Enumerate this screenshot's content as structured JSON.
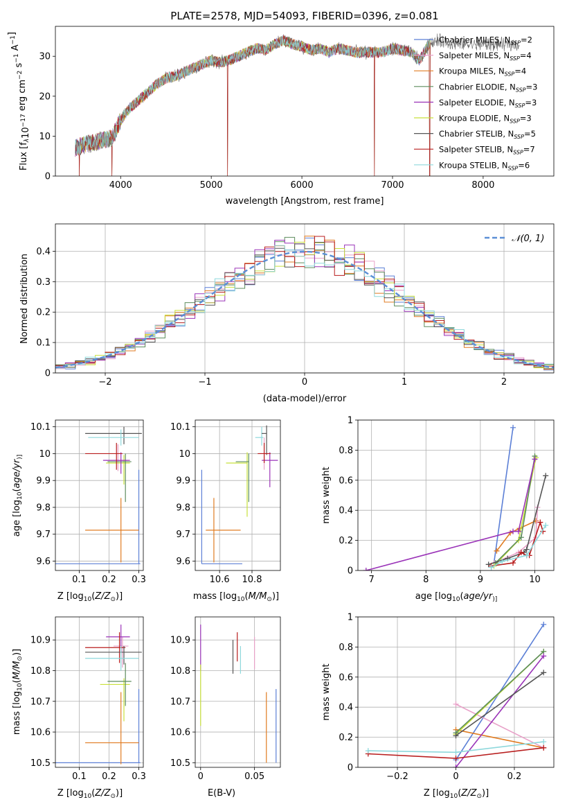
{
  "chart_data": [
    {
      "id": "spectrum",
      "type": "line",
      "title": "PLATE=2578, MJD=54093, FIBERID=0396, z=0.081",
      "xlabel": "wavelength [Angstrom, rest frame]",
      "ylabel_parts": [
        "Flux [f",
        "λ",
        "10",
        "−17",
        " erg cm",
        "−2",
        " s",
        "−1",
        " A",
        "−1",
        "]"
      ],
      "xlim": [
        3280,
        8780
      ],
      "ylim": [
        0,
        37.5
      ],
      "xticks": [
        4000,
        5000,
        6000,
        7000,
        8000
      ],
      "yticks": [
        0,
        10,
        20,
        30
      ],
      "grid": false,
      "legend_position": "top-right",
      "series": [
        {
          "name": "Chabrier MILES",
          "nssp": "2",
          "color": "#5b7fd6"
        },
        {
          "name": "Salpeter MILES",
          "nssp": "4",
          "color": "#e8a0c8"
        },
        {
          "name": "Kroupa MILES",
          "nssp": "4",
          "color": "#e07b20"
        },
        {
          "name": "Chabrier ELODIE",
          "nssp": "3",
          "color": "#5c8c5c"
        },
        {
          "name": "Salpeter ELODIE",
          "nssp": "3",
          "color": "#9a33b8"
        },
        {
          "name": "Kroupa ELODIE",
          "nssp": "3",
          "color": "#c8e03a"
        },
        {
          "name": "Chabrier STELIB",
          "nssp": "5",
          "color": "#555555"
        },
        {
          "name": "Salpeter STELIB",
          "nssp": "7",
          "color": "#b81d1d"
        },
        {
          "name": "Kroupa STELIB",
          "nssp": "6",
          "color": "#8ed8dc"
        }
      ],
      "continuum": {
        "x": [
          3500,
          3600,
          3700,
          3800,
          3900,
          4000,
          4100,
          4200,
          4300,
          4400,
          4500,
          4600,
          4700,
          4800,
          4900,
          5000,
          5100,
          5200,
          5300,
          5400,
          5500,
          5600,
          5700,
          5800,
          5900,
          6000,
          6100,
          6200,
          6300,
          6400,
          6500,
          6600,
          6700,
          6800,
          6900,
          7000,
          7100,
          7200,
          7300,
          7400,
          7500,
          7600,
          7700,
          7800,
          7900,
          8000,
          8100,
          8200,
          8300,
          8400
        ],
        "y": [
          7,
          8,
          8.5,
          9,
          9.5,
          14,
          17,
          19,
          21,
          23,
          24.5,
          25,
          26,
          27,
          28,
          29,
          28.5,
          29,
          30,
          31,
          32,
          31.5,
          33,
          34,
          33,
          32.5,
          31.5,
          32,
          31,
          32,
          31.5,
          31,
          31,
          31,
          31,
          32,
          31.5,
          31,
          29,
          33,
          34,
          33.5,
          33,
          33,
          33,
          33,
          33,
          33,
          33,
          33
        ]
      },
      "dropouts_x": [
        3545,
        3905,
        5180,
        6800,
        7410
      ]
    },
    {
      "id": "residuals",
      "type": "histogram",
      "xlabel": "(data-model)/error",
      "ylabel": "Normed distribution",
      "xlim": [
        -2.5,
        2.5
      ],
      "ylim": [
        0,
        0.49
      ],
      "xticks": [
        -2,
        -1,
        0,
        1,
        2
      ],
      "yticks": [
        0.0,
        0.1,
        0.2,
        0.3,
        0.4
      ],
      "grid": true,
      "legend_position": "top-right",
      "legend": "𝒩(0, 1)",
      "reference_curve": {
        "type": "normal",
        "mean": 0,
        "sd": 1,
        "color": "#5b8fd6"
      },
      "bin_width": 0.1
    },
    {
      "id": "age-vs-Z",
      "type": "scatter",
      "xlabel_parts": [
        "Z [log",
        "10",
        "(",
        "Z/Z",
        "⊙",
        ")]"
      ],
      "ylabel_parts": [
        "age  [log",
        "10",
        "(",
        "age/yr",
        ")]"
      ],
      "xlim": [
        0.02,
        0.315
      ],
      "ylim": [
        9.565,
        10.125
      ],
      "xticks": [
        0.1,
        0.2,
        0.3
      ],
      "yticks": [
        9.6,
        9.7,
        9.8,
        9.9,
        10.0,
        10.1
      ],
      "grid": true,
      "points": [
        {
          "x": 0.3,
          "y": 9.59,
          "xerr": [
            0.28,
            0.005
          ],
          "yerr": [
            0.0,
            0.35
          ],
          "color": "#5b7fd6"
        },
        {
          "x": 0.24,
          "y": 9.715,
          "xerr": [
            0.12,
            0.06
          ],
          "yerr": [
            0.12,
            0.12
          ],
          "color": "#e07b20"
        },
        {
          "x": 0.23,
          "y": 9.975,
          "xerr": [
            0.04,
            0.03
          ],
          "yerr": [
            0.04,
            0.06
          ],
          "color": "#e8a0c8"
        },
        {
          "x": 0.25,
          "y": 9.965,
          "xerr": [
            0.06,
            0.02
          ],
          "yerr": [
            0.08,
            0.03
          ],
          "color": "#c8e03a"
        },
        {
          "x": 0.255,
          "y": 9.97,
          "xerr": [
            0.06,
            0.02
          ],
          "yerr": [
            0.15,
            0.03
          ],
          "color": "#5c8c5c"
        },
        {
          "x": 0.24,
          "y": 9.975,
          "xerr": [
            0.06,
            0.03
          ],
          "yerr": [
            0.05,
            0.03
          ],
          "color": "#9a33b8"
        },
        {
          "x": 0.225,
          "y": 10.0,
          "xerr": [
            0.105,
            0.02
          ],
          "yerr": [
            0.06,
            0.04
          ],
          "color": "#b81d1d"
        },
        {
          "x": 0.25,
          "y": 10.075,
          "xerr": [
            0.13,
            0.06
          ],
          "yerr": [
            0.04,
            0.025
          ],
          "color": "#555555"
        },
        {
          "x": 0.24,
          "y": 10.06,
          "xerr": [
            0.11,
            0.06
          ],
          "yerr": [
            0.03,
            0.03
          ],
          "color": "#8ed8dc"
        }
      ]
    },
    {
      "id": "age-vs-mass",
      "type": "scatter",
      "xlabel_parts": [
        "mass [log",
        "10",
        "(",
        "M/M",
        "⊙",
        ")]"
      ],
      "ylabel": "",
      "xlim": [
        10.45,
        10.975
      ],
      "ylim": [
        9.565,
        10.125
      ],
      "xticks": [
        10.6,
        10.8
      ],
      "yticks": [
        9.6,
        9.7,
        9.8,
        9.9,
        10.0,
        10.1
      ],
      "grid": true,
      "points": [
        {
          "x": 10.49,
          "y": 9.59,
          "xerr": [
            0.0,
            0.25
          ],
          "yerr": [
            0.0,
            0.35
          ],
          "color": "#5b7fd6"
        },
        {
          "x": 10.565,
          "y": 9.715,
          "xerr": [
            0.05,
            0.165
          ],
          "yerr": [
            0.12,
            0.12
          ],
          "color": "#e07b20"
        },
        {
          "x": 10.77,
          "y": 9.965,
          "xerr": [
            0.13,
            0.0
          ],
          "yerr": [
            0.2,
            0.04
          ],
          "color": "#c8e03a"
        },
        {
          "x": 10.78,
          "y": 9.97,
          "xerr": [
            0.08,
            0.0
          ],
          "yerr": [
            0.15,
            0.03
          ],
          "color": "#5c8c5c"
        },
        {
          "x": 10.86,
          "y": 10.06,
          "xerr": [
            0.04,
            0.01
          ],
          "yerr": [
            0.03,
            0.04
          ],
          "color": "#8ed8dc"
        },
        {
          "x": 10.875,
          "y": 10.0,
          "xerr": [
            0.03,
            0.03
          ],
          "yerr": [
            0.06,
            0.06
          ],
          "color": "#e8a0c8"
        },
        {
          "x": 10.89,
          "y": 10.075,
          "xerr": [
            0.03,
            0.0
          ],
          "yerr": [
            0.08,
            0.03
          ],
          "color": "#555555"
        },
        {
          "x": 10.91,
          "y": 9.975,
          "xerr": [
            0.05,
            0.05
          ],
          "yerr": [
            0.1,
            0.03
          ],
          "color": "#9a33b8"
        },
        {
          "x": 10.875,
          "y": 10.0,
          "xerr": [
            0.04,
            0.04
          ],
          "yerr": [
            0.035,
            0.04
          ],
          "color": "#b81d1d"
        }
      ]
    },
    {
      "id": "weight-vs-age",
      "type": "line",
      "xlabel_parts": [
        "age  [log",
        "10",
        "(",
        "age/yr",
        ")]"
      ],
      "ylabel": "mass weight",
      "xlim": [
        6.75,
        10.35
      ],
      "ylim": [
        0,
        1.0
      ],
      "xticks": [
        7,
        8,
        9,
        10
      ],
      "yticks": [
        0.0,
        0.2,
        0.4,
        0.6,
        0.8,
        1.0
      ],
      "grid": true,
      "series": [
        {
          "color": "#5b7fd6",
          "x": [
            9.25,
            9.6
          ],
          "y": [
            0.05,
            0.95
          ]
        },
        {
          "color": "#e07b20",
          "x": [
            9.3,
            9.55,
            9.72,
            10.02
          ],
          "y": [
            0.13,
            0.25,
            0.28,
            0.33
          ]
        },
        {
          "color": "#e8a0c8",
          "x": [
            9.25,
            9.7,
            10.02,
            10.05
          ],
          "y": [
            0.05,
            0.12,
            0.22,
            0.42
          ]
        },
        {
          "color": "#c8e03a",
          "x": [
            9.25,
            9.7,
            10.02
          ],
          "y": [
            0.03,
            0.2,
            0.75
          ]
        },
        {
          "color": "#5c8c5c",
          "x": [
            9.28,
            9.75,
            10.0
          ],
          "y": [
            0.05,
            0.22,
            0.76
          ]
        },
        {
          "color": "#9a33b8",
          "x": [
            6.9,
            9.6,
            9.7,
            10.0
          ],
          "y": [
            0.0,
            0.26,
            0.26,
            0.74
          ]
        },
        {
          "color": "#555555",
          "x": [
            9.15,
            9.5,
            9.8,
            9.85,
            10.2
          ],
          "y": [
            0.04,
            0.08,
            0.12,
            0.14,
            0.63
          ]
        },
        {
          "color": "#b81d1d",
          "x": [
            9.2,
            9.6,
            9.75,
            9.85,
            9.9,
            10.1,
            10.15
          ],
          "y": [
            0.03,
            0.05,
            0.12,
            0.1,
            0.1,
            0.32,
            0.26
          ]
        },
        {
          "color": "#8ed8dc",
          "x": [
            9.2,
            9.4,
            9.85,
            10.2
          ],
          "y": [
            0.02,
            0.06,
            0.1,
            0.3
          ]
        }
      ]
    },
    {
      "id": "mass-vs-Z",
      "type": "scatter",
      "xlabel_parts": [
        "Z [log",
        "10",
        "(",
        "Z/Z",
        "⊙",
        ")]"
      ],
      "ylabel_parts": [
        "mass [log",
        "10",
        "(",
        "M/M",
        "⊙",
        ")]"
      ],
      "xlim": [
        0.02,
        0.315
      ],
      "ylim": [
        10.485,
        10.975
      ],
      "xticks": [
        0.1,
        0.2,
        0.3
      ],
      "yticks": [
        10.5,
        10.6,
        10.7,
        10.8,
        10.9
      ],
      "grid": true,
      "points": [
        {
          "x": 0.3,
          "y": 10.5,
          "xerr": [
            0.28,
            0.005
          ],
          "yerr": [
            0.0,
            0.24
          ],
          "color": "#5b7fd6"
        },
        {
          "x": 0.24,
          "y": 10.565,
          "xerr": [
            0.12,
            0.06
          ],
          "yerr": [
            0.07,
            0.165
          ],
          "color": "#e07b20"
        },
        {
          "x": 0.245,
          "y": 10.88,
          "xerr": [
            0.03,
            0.02
          ],
          "yerr": [
            0.07,
            0.03
          ],
          "color": "#e8a0c8"
        },
        {
          "x": 0.25,
          "y": 10.755,
          "xerr": [
            0.08,
            0.02
          ],
          "yerr": [
            0.12,
            0.02
          ],
          "color": "#c8e03a"
        },
        {
          "x": 0.255,
          "y": 10.765,
          "xerr": [
            0.06,
            0.02
          ],
          "yerr": [
            0.08,
            0.06
          ],
          "color": "#5c8c5c"
        },
        {
          "x": 0.24,
          "y": 10.91,
          "xerr": [
            0.05,
            0.03
          ],
          "yerr": [
            0.05,
            0.04
          ],
          "color": "#9a33b8"
        },
        {
          "x": 0.235,
          "y": 10.875,
          "xerr": [
            0.115,
            0.02
          ],
          "yerr": [
            0.05,
            0.05
          ],
          "color": "#b81d1d"
        },
        {
          "x": 0.25,
          "y": 10.86,
          "xerr": [
            0.13,
            0.06
          ],
          "yerr": [
            0.04,
            0.02
          ],
          "color": "#555555"
        },
        {
          "x": 0.24,
          "y": 10.84,
          "xerr": [
            0.12,
            0.06
          ],
          "yerr": [
            0.04,
            0.04
          ],
          "color": "#8ed8dc"
        }
      ]
    },
    {
      "id": "mass-vs-EBV",
      "type": "scatter",
      "xlabel": "E(B-V)",
      "ylabel": "",
      "xlim": [
        -0.005,
        0.074
      ],
      "ylim": [
        10.485,
        10.975
      ],
      "xticks": [
        0.0,
        0.05
      ],
      "yticks": [
        10.5,
        10.6,
        10.7,
        10.8,
        10.9
      ],
      "grid": true,
      "points": [
        {
          "x": 0.07,
          "y": 10.6,
          "xerr": [
            0,
            0
          ],
          "yerr": [
            0.1,
            0.14
          ],
          "color": "#5b7fd6"
        },
        {
          "x": 0.061,
          "y": 10.6,
          "xerr": [
            0,
            0
          ],
          "yerr": [
            0.1,
            0.13
          ],
          "color": "#e07b20"
        },
        {
          "x": 0.0,
          "y": 10.9,
          "xerr": [
            0,
            0
          ],
          "yerr": [
            0.1,
            0.05
          ],
          "color": "#9a33b8"
        },
        {
          "x": 0.0,
          "y": 10.72,
          "xerr": [
            0,
            0
          ],
          "yerr": [
            0.1,
            0.1
          ],
          "color": "#c8e03a"
        },
        {
          "x": 0.03,
          "y": 10.845,
          "xerr": [
            0,
            0
          ],
          "yerr": [
            0.055,
            0.055
          ],
          "color": "#555555"
        },
        {
          "x": 0.034,
          "y": 10.875,
          "xerr": [
            0,
            0
          ],
          "yerr": [
            0.045,
            0.05
          ],
          "color": "#b81d1d"
        },
        {
          "x": 0.037,
          "y": 10.835,
          "xerr": [
            0,
            0
          ],
          "yerr": [
            0.045,
            0.045
          ],
          "color": "#8ed8dc"
        },
        {
          "x": 0.05,
          "y": 10.855,
          "xerr": [
            0,
            0
          ],
          "yerr": [
            0.05,
            0.055
          ],
          "color": "#e8a0c8"
        }
      ]
    },
    {
      "id": "weight-vs-Z",
      "type": "line",
      "xlabel_parts": [
        "Z [log",
        "10",
        "(",
        "Z/Z",
        "⊙",
        ")]"
      ],
      "ylabel": "mass weight",
      "xlim": [
        -0.335,
        0.335
      ],
      "ylim": [
        0,
        1.0
      ],
      "xticks": [
        -0.2,
        0.0,
        0.2
      ],
      "yticks": [
        0.0,
        0.2,
        0.4,
        0.6,
        0.8,
        1.0
      ],
      "grid": true,
      "series": [
        {
          "color": "#5b7fd6",
          "x": [
            0.0,
            0.3
          ],
          "y": [
            0.05,
            0.95
          ]
        },
        {
          "color": "#e07b20",
          "x": [
            0.0,
            0.3
          ],
          "y": [
            0.25,
            0.13
          ]
        },
        {
          "color": "#e8a0c8",
          "x": [
            0.0,
            0.3
          ],
          "y": [
            0.42,
            0.13
          ]
        },
        {
          "color": "#c8e03a",
          "x": [
            0.0,
            0.3
          ],
          "y": [
            0.22,
            0.77
          ]
        },
        {
          "color": "#5c8c5c",
          "x": [
            0.0,
            0.3
          ],
          "y": [
            0.23,
            0.77
          ]
        },
        {
          "color": "#9a33b8",
          "x": [
            0.0,
            0.3
          ],
          "y": [
            0.0,
            0.74
          ]
        },
        {
          "color": "#555555",
          "x": [
            0.0,
            0.3
          ],
          "y": [
            0.21,
            0.63
          ]
        },
        {
          "color": "#b81d1d",
          "x": [
            -0.3,
            0.0,
            0.3
          ],
          "y": [
            0.09,
            0.06,
            0.13
          ]
        },
        {
          "color": "#8ed8dc",
          "x": [
            -0.3,
            0.0,
            0.3
          ],
          "y": [
            0.11,
            0.1,
            0.17
          ]
        }
      ]
    }
  ]
}
